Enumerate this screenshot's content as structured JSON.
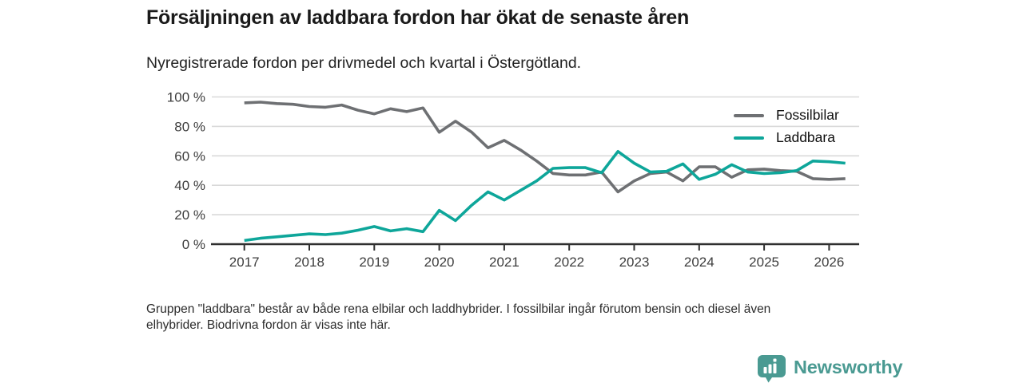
{
  "header": {
    "title": "Försäljningen av laddbara fordon har ökat de senaste åren",
    "subtitle": "Nyregistrerade fordon per drivmedel och kvartal i Östergötland."
  },
  "chart_data": {
    "type": "line",
    "unit": "percent",
    "title": "Nyregistrerade fordon per drivmedel och kvartal i Östergötland",
    "x_tick_labels": [
      "2017",
      "2018",
      "2019",
      "2020",
      "2021",
      "2022",
      "2023",
      "2024",
      "2025",
      "2026"
    ],
    "y_tick_labels": [
      "0 %",
      "20 %",
      "40 %",
      "60 %",
      "80 %",
      "100 %"
    ],
    "ylim": [
      0,
      100
    ],
    "grid": "horizontal",
    "legend_position": "top-right",
    "x_resolution": "quarterly",
    "x_start": "2017 Q1",
    "x_end": "2026 Q2",
    "series": [
      {
        "name": "Fossilbilar",
        "color": "#6e7073",
        "values": [
          96,
          96.5,
          95.5,
          95,
          93.5,
          93,
          94.5,
          91,
          88.5,
          92,
          90,
          92.5,
          76,
          83.5,
          76,
          65.5,
          70.5,
          64,
          56.5,
          48,
          47,
          47,
          49,
          35.5,
          43,
          48,
          49,
          43,
          52.5,
          52.5,
          45.5,
          50.5,
          51,
          50,
          49.5,
          44.5,
          44,
          44.5
        ]
      },
      {
        "name": "Laddbara",
        "color": "#0ea69a",
        "values": [
          2.5,
          4,
          5,
          6,
          7,
          6.5,
          7.5,
          9.5,
          12,
          9,
          10.5,
          8.5,
          23,
          16,
          26.5,
          35.5,
          30,
          36.5,
          43,
          51.5,
          52,
          52,
          48.5,
          63,
          55,
          49,
          49.5,
          54.5,
          44,
          47.5,
          54,
          49,
          48,
          48.5,
          50,
          56.5,
          56,
          55
        ]
      }
    ]
  },
  "footnote": {
    "line1": "Gruppen \"laddbara\" består av både rena elbilar och laddhybrider. I fossilbilar ingår förutom bensin och diesel även",
    "line2": "elhybrider. Biodrivna fordon är visas inte här."
  },
  "branding": {
    "name": "Newsworthy",
    "color": "#4a9a92"
  }
}
